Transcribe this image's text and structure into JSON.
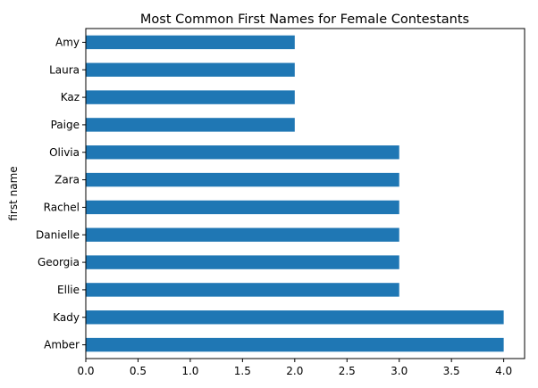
{
  "chart_data": {
    "type": "bar",
    "orientation": "horizontal",
    "title": "Most Common First Names for Female Contestants",
    "xlabel": "",
    "ylabel": "first name",
    "categories": [
      "Amy",
      "Laura",
      "Kaz",
      "Paige",
      "Olivia",
      "Zara",
      "Rachel",
      "Danielle",
      "Georgia",
      "Ellie",
      "Kady",
      "Amber"
    ],
    "values": [
      2,
      2,
      2,
      2,
      3,
      3,
      3,
      3,
      3,
      3,
      4,
      4
    ],
    "xlim": [
      0,
      4.2
    ],
    "xticks": [
      "0.0",
      "0.5",
      "1.0",
      "1.5",
      "2.0",
      "2.5",
      "3.0",
      "3.5",
      "4.0"
    ],
    "bar_color": "#1f77b4",
    "grid": false,
    "legend": "none"
  }
}
